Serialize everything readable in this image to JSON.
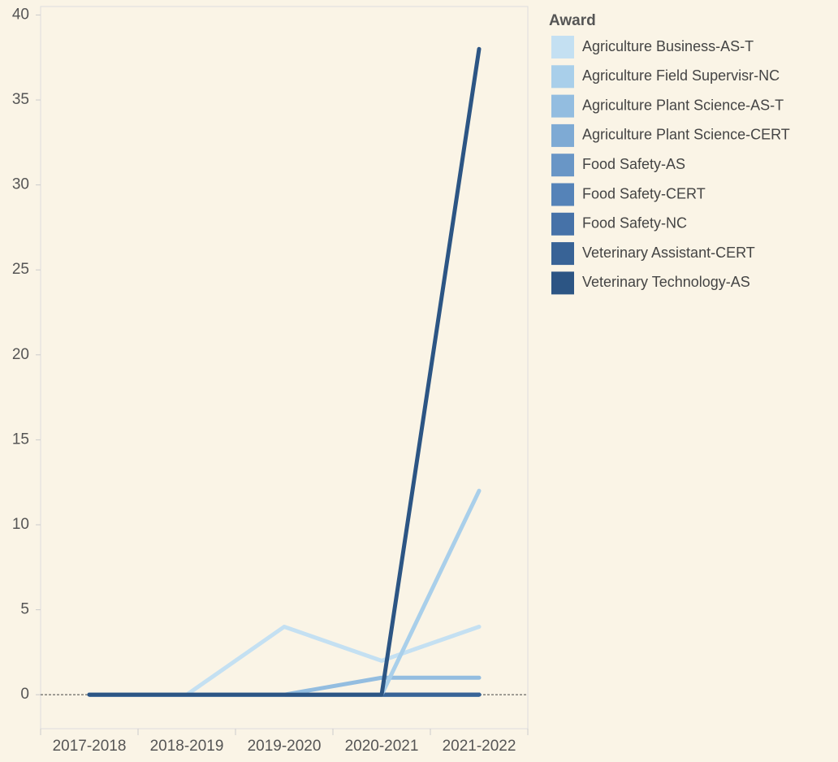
{
  "chart_data": {
    "type": "line",
    "legend_title": "Award",
    "categories": [
      "2017-2018",
      "2018-2019",
      "2019-2020",
      "2020-2021",
      "2021-2022"
    ],
    "series": [
      {
        "name": "Agriculture Business-AS-T",
        "color": "#c4e0f2",
        "values": [
          0,
          0,
          4,
          2,
          4
        ]
      },
      {
        "name": "Agriculture Field Supervisr-NC",
        "color": "#a9cfea",
        "values": [
          0,
          0,
          0,
          0,
          12
        ]
      },
      {
        "name": "Agriculture Plant Science-AS-T",
        "color": "#93bde0",
        "values": [
          0,
          0,
          0,
          1,
          1
        ]
      },
      {
        "name": "Agriculture Plant Science-CERT",
        "color": "#7eaad4",
        "values": [
          0,
          0,
          0,
          0,
          0
        ]
      },
      {
        "name": "Food Safety-AS",
        "color": "#6996c6",
        "values": [
          0,
          0,
          0,
          0,
          0
        ]
      },
      {
        "name": "Food Safety-CERT",
        "color": "#5583b8",
        "values": [
          0,
          0,
          0,
          0,
          0
        ]
      },
      {
        "name": "Food Safety-NC",
        "color": "#4672a8",
        "values": [
          0,
          0,
          0,
          0,
          0
        ]
      },
      {
        "name": "Veterinary Assistant-CERT",
        "color": "#386396",
        "values": [
          0,
          0,
          0,
          0,
          0
        ]
      },
      {
        "name": "Veterinary Technology-AS",
        "color": "#2c5584",
        "values": [
          0,
          0,
          0,
          0,
          38
        ]
      }
    ],
    "ylim": [
      -2,
      40.5
    ],
    "yticks": [
      0,
      5,
      10,
      15,
      20,
      25,
      30,
      35,
      40
    ]
  }
}
